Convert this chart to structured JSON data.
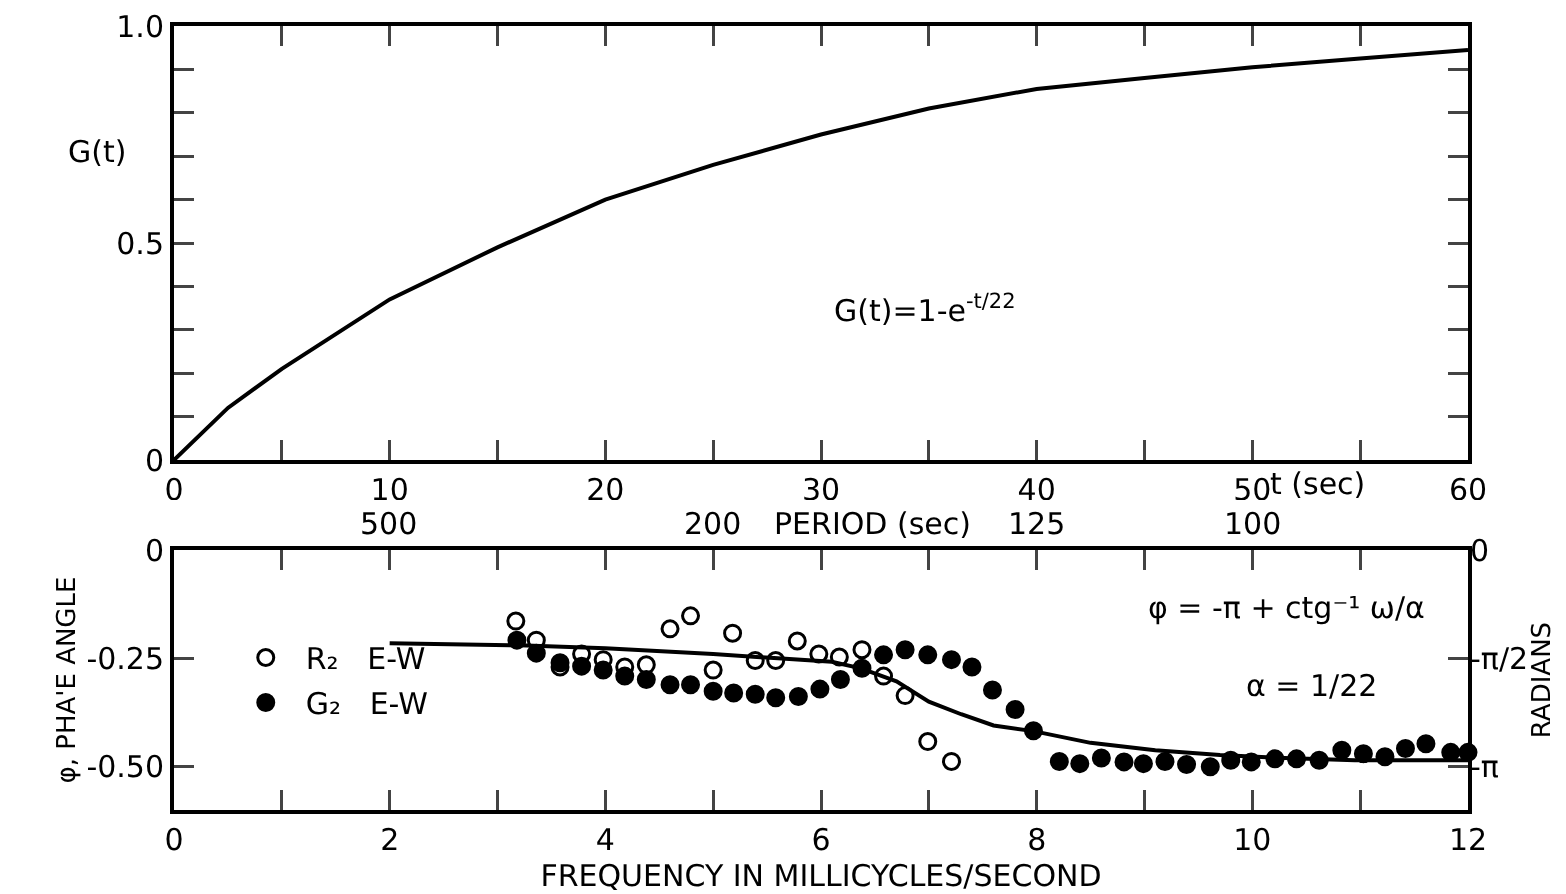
{
  "chart_data": [
    {
      "type": "line",
      "xlabel": "t (sec)",
      "ylabel": "G(t)",
      "annotations": [
        "G(t)=1-e$^{-t/22}$"
      ],
      "x": [
        0,
        2.5,
        5,
        10,
        15,
        20,
        25,
        30,
        35,
        40,
        45,
        50,
        55,
        60
      ],
      "series": [
        {
          "color": "#000000",
          "values": [
            0,
            0.12,
            0.21,
            0.37,
            0.49,
            0.6,
            0.68,
            0.75,
            0.81,
            0.855,
            0.88,
            0.905,
            0.925,
            0.945
          ]
        }
      ],
      "xlim": [
        0,
        60
      ],
      "ylim": [
        0,
        1
      ],
      "xticks": [
        0,
        {
          "value": 5,
          "label": null
        },
        10,
        {
          "value": 15,
          "label": null
        },
        20,
        {
          "value": 25,
          "label": null
        },
        30,
        {
          "value": 35,
          "label": null
        },
        40,
        {
          "value": 45,
          "label": null
        },
        50,
        {
          "value": 55,
          "label": null
        },
        60
      ],
      "yticks": [
        0,
        {
          "value": 0.1,
          "label": null
        },
        {
          "value": 0.2,
          "label": null
        },
        {
          "value": 0.3,
          "label": null
        },
        {
          "value": 0.4,
          "label": null
        },
        0.5,
        {
          "value": 0.6,
          "label": null
        },
        {
          "value": 0.7,
          "label": null
        },
        {
          "value": 0.8,
          "label": null
        },
        {
          "value": 0.9,
          "label": null
        },
        {
          "value": 1,
          "label": "1.0"
        }
      ],
      "grid": false,
      "legend": false,
      "marker": "none",
      "line_style": "solid"
    },
    {
      "type": "scatter",
      "xlabel": "FREQUENCY IN MILLICYCLES/SECOND",
      "ylabel": "φ, PHA'E ANGLE",
      "y2label": "RADIANS",
      "annotations": [
        "φ = -π + ctg⁻¹ ω/α",
        "α = 1/22",
        "PERIOD (sec)",
        "500",
        "200",
        "125",
        "100"
      ],
      "series": [
        {
          "name": "R₂   E-W",
          "color": "#000000",
          "marker": "circle-open",
          "x": [
            3.17,
            3.36,
            3.58,
            3.78,
            3.98,
            4.18,
            4.38,
            4.6,
            4.79,
            5.0,
            5.18,
            5.39,
            5.58,
            5.78,
            5.98,
            6.17,
            6.38,
            6.58,
            6.78,
            6.99,
            7.21
          ],
          "values": [
            -0.164,
            -0.208,
            -0.27,
            -0.24,
            -0.253,
            -0.27,
            -0.265,
            -0.182,
            -0.152,
            -0.277,
            -0.192,
            -0.255,
            -0.255,
            -0.21,
            -0.24,
            -0.247,
            -0.23,
            -0.291,
            -0.336,
            -0.442,
            -0.488
          ]
        },
        {
          "name": "G₂   E-W",
          "color": "#000000",
          "marker": "circle",
          "x": [
            3.18,
            3.36,
            3.58,
            3.78,
            3.98,
            4.18,
            4.38,
            4.6,
            4.79,
            5.0,
            5.19,
            5.39,
            5.58,
            5.79,
            5.99,
            6.18,
            6.38,
            6.58,
            6.78,
            6.99,
            7.21,
            7.4,
            7.59,
            7.8,
            7.97,
            8.21,
            8.4,
            8.6,
            8.81,
            8.99,
            9.19,
            9.39,
            9.61,
            9.8,
            9.99,
            10.21,
            10.41,
            10.62,
            10.83,
            11.03,
            11.23,
            11.42,
            11.61,
            11.84,
            12.0
          ],
          "values": [
            -0.208,
            -0.238,
            -0.26,
            -0.268,
            -0.277,
            -0.291,
            -0.299,
            -0.311,
            -0.311,
            -0.326,
            -0.33,
            -0.333,
            -0.341,
            -0.338,
            -0.321,
            -0.299,
            -0.273,
            -0.242,
            -0.23,
            -0.242,
            -0.253,
            -0.27,
            -0.323,
            -0.368,
            -0.417,
            -0.488,
            -0.493,
            -0.48,
            -0.489,
            -0.493,
            -0.488,
            -0.495,
            -0.5,
            -0.485,
            -0.489,
            -0.482,
            -0.482,
            -0.485,
            -0.462,
            -0.47,
            -0.477,
            -0.458,
            -0.447,
            -0.467,
            -0.467
          ]
        },
        {
          "type": "line",
          "color": "#000000",
          "marker": "none",
          "x": [
            2,
            3.2,
            4,
            5,
            5.6,
            6.1,
            6.37,
            6.7,
            7.0,
            7.3,
            7.6,
            7.97,
            8.5,
            9.1,
            9.7,
            10.3,
            10.95,
            12
          ],
          "values": [
            -0.215,
            -0.22,
            -0.227,
            -0.24,
            -0.25,
            -0.258,
            -0.273,
            -0.303,
            -0.35,
            -0.379,
            -0.405,
            -0.418,
            -0.445,
            -0.462,
            -0.473,
            -0.48,
            -0.485,
            -0.485
          ]
        }
      ],
      "xlim": [
        0,
        12
      ],
      "ylim": [
        -0.6,
        0
      ],
      "y2lim": [
        -3.77,
        0
      ],
      "xticks": [
        0,
        {
          "value": 1,
          "label": null
        },
        2,
        {
          "value": 3,
          "label": null
        },
        4,
        {
          "value": 5,
          "label": null
        },
        6,
        {
          "value": 7,
          "label": null
        },
        8,
        {
          "value": 9,
          "label": null
        },
        10,
        {
          "value": 11,
          "label": null
        },
        12
      ],
      "yticks": [
        0,
        -0.25,
        {
          "value": -0.5,
          "label": "-0.50"
        }
      ],
      "y2ticks": [
        0,
        {
          "value": -1.571,
          "label": "-π/2"
        },
        {
          "value": -3.142,
          "label": "-π"
        }
      ],
      "grid": false,
      "legend": "left"
    }
  ]
}
